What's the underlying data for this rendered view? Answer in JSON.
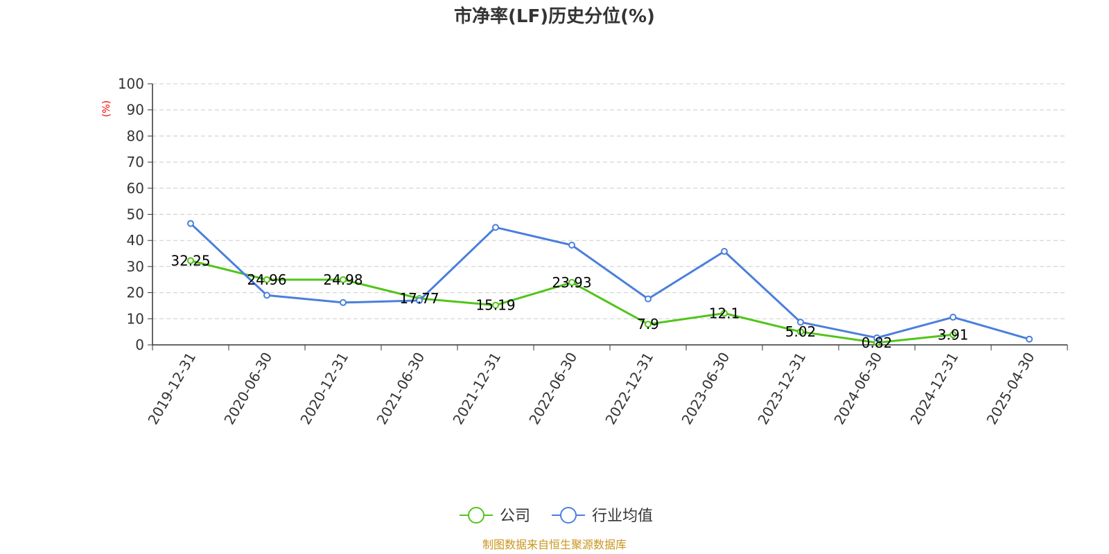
{
  "chart_data": {
    "type": "line",
    "title": "市净率(LF)历史分位(%)",
    "ylabel": "(%)",
    "ylim": [
      0,
      100
    ],
    "yticks": [
      0,
      10,
      20,
      30,
      40,
      50,
      60,
      70,
      80,
      90,
      100
    ],
    "grid": true,
    "legend_position": "bottom",
    "categories": [
      "2019-12-31",
      "2020-06-30",
      "2020-12-31",
      "2021-06-30",
      "2021-12-31",
      "2022-06-30",
      "2022-12-31",
      "2023-06-30",
      "2023-12-31",
      "2024-06-30",
      "2024-12-31",
      "2025-04-30"
    ],
    "series": [
      {
        "name": "公司",
        "color": "#52c41a",
        "values": [
          32.25,
          24.96,
          24.98,
          17.77,
          15.19,
          23.93,
          7.9,
          12.1,
          5.02,
          0.82,
          3.91,
          null
        ],
        "labels": [
          "32.25",
          "24.96",
          "24.98",
          "17.77",
          "15.19",
          "23.93",
          "7.9",
          "12.1",
          "5.02",
          "0.82",
          "3.91",
          ""
        ]
      },
      {
        "name": "行业均值",
        "color": "#4a7fdc",
        "values": [
          46.5,
          19.0,
          16.2,
          17.0,
          45.0,
          38.2,
          17.6,
          35.8,
          8.7,
          2.7,
          10.6,
          2.2
        ]
      }
    ]
  },
  "footer": {
    "source": "制图数据来自恒生聚源数据库"
  }
}
